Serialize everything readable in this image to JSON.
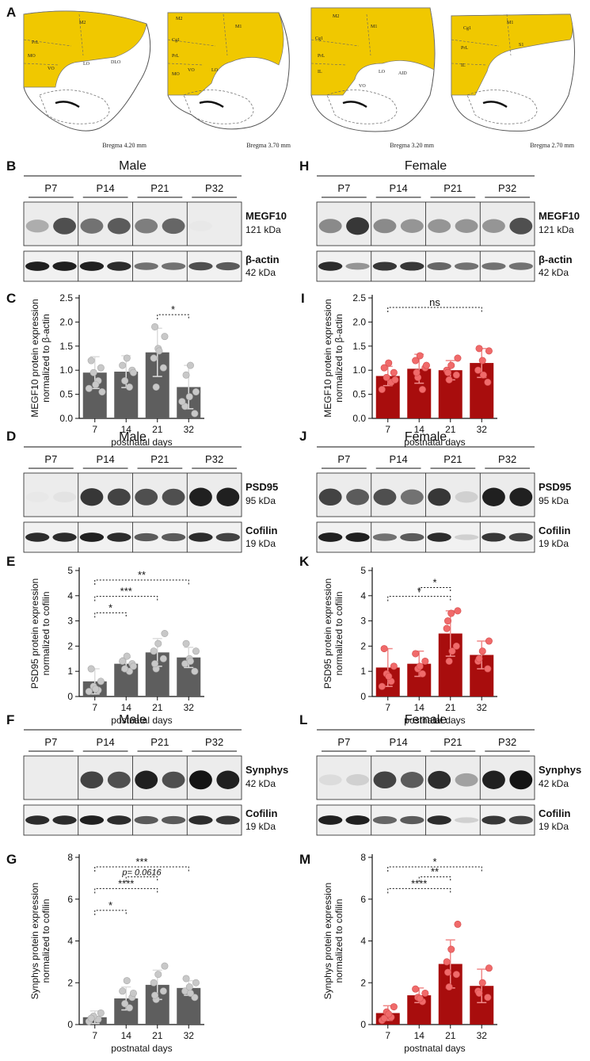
{
  "panel_letters": {
    "A": "A",
    "B": "B",
    "C": "C",
    "D": "D",
    "E": "E",
    "F": "F",
    "G": "G",
    "H": "H",
    "I": "I",
    "J": "J",
    "K": "K",
    "L": "L",
    "M": "M"
  },
  "atlas": {
    "bregma": [
      "Bregma 4.20 mm",
      "Bregma 3.70 mm",
      "Bregma 3.20 mm",
      "Bregma 2.70 mm"
    ],
    "regions": [
      [
        "M2",
        "PrL",
        "MO",
        "VO",
        "LO",
        "DLO"
      ],
      [
        "M2",
        "M1",
        "Cg1",
        "PrL",
        "MO",
        "VO",
        "LO"
      ],
      [
        "M2",
        "M1",
        "Cg1",
        "PrL",
        "IL",
        "VO",
        "LO",
        "AID"
      ],
      [
        "M1",
        "Cg1",
        "PrL",
        "IL",
        "S1"
      ]
    ]
  },
  "blots": {
    "lane_labels": [
      "P7",
      "P14",
      "P21",
      "P32"
    ],
    "B": {
      "sex": "Male",
      "target": "MEGF10",
      "target_kda": "121 kDa",
      "control": "β-actin",
      "control_kda": "42 kDa"
    },
    "H": {
      "sex": "Female",
      "target": "MEGF10",
      "target_kda": "121 kDa",
      "control": "β-actin",
      "control_kda": "42 kDa"
    },
    "D": {
      "sex": "Male",
      "target": "PSD95",
      "target_kda": "95 kDa",
      "control": "Cofilin",
      "control_kda": "19 kDa"
    },
    "J": {
      "sex": "Female",
      "target": "PSD95",
      "target_kda": "95 kDa",
      "control": "Cofilin",
      "control_kda": "19 kDa"
    },
    "F": {
      "sex": "Male",
      "target": "Synphys",
      "target_kda": "42 kDa",
      "control": "Cofilin",
      "control_kda": "19 kDa"
    },
    "L": {
      "sex": "Female",
      "target": "Synphys",
      "target_kda": "42 kDa",
      "control": "Cofilin",
      "control_kda": "19 kDa"
    }
  },
  "colors": {
    "male_bar": "#5e5e5e",
    "male_point": "#c8c8c8",
    "female_bar": "#a80d0d",
    "female_point": "#f06a6a",
    "atlas_fill": "#f0c800"
  },
  "chart_data": [
    {
      "panel": "C",
      "type": "bar",
      "xlabel": "postnatal days",
      "ylabel": "MEGF10 protein expression normalized to β-actin",
      "categories": [
        "7",
        "14",
        "21",
        "32"
      ],
      "values": [
        0.95,
        0.97,
        1.37,
        0.65
      ],
      "errors": [
        0.33,
        0.33,
        0.5,
        0.45
      ],
      "ylim": [
        0,
        2.5
      ],
      "yticks": [
        "0.0",
        "0.5",
        "1.0",
        "1.5",
        "2.0",
        "2.5"
      ],
      "points": [
        [
          0.62,
          0.78,
          0.95,
          1.05,
          1.2,
          0.7,
          0.55
        ],
        [
          0.65,
          0.78,
          1.0,
          1.1,
          1.25,
          0.95
        ],
        [
          0.65,
          1.05,
          1.25,
          1.45,
          1.7,
          1.9,
          1.4
        ],
        [
          0.1,
          0.25,
          0.45,
          0.55,
          0.9,
          1.1,
          0.35
        ]
      ],
      "significance": [
        {
          "from": "21",
          "to": "32",
          "label": "*"
        }
      ]
    },
    {
      "panel": "I",
      "type": "bar",
      "xlabel": "postnatal days",
      "ylabel": "MEGF10 protein expression normalized to β-actin",
      "categories": [
        "7",
        "14",
        "21",
        "32"
      ],
      "values": [
        0.88,
        1.03,
        1.0,
        1.15
      ],
      "errors": [
        0.2,
        0.3,
        0.2,
        0.3
      ],
      "ylim": [
        0,
        2.5
      ],
      "yticks": [
        "0.0",
        "0.5",
        "1.0",
        "1.5",
        "2.0",
        "2.5"
      ],
      "points": [
        [
          0.6,
          0.75,
          0.85,
          0.95,
          1.05,
          1.15,
          0.8
        ],
        [
          0.6,
          0.85,
          1.05,
          1.2,
          1.3,
          1.1,
          0.95
        ],
        [
          0.8,
          0.9,
          1.0,
          1.1,
          1.25,
          0.95
        ],
        [
          0.75,
          1.0,
          1.2,
          1.4,
          1.45,
          0.9
        ]
      ],
      "significance": [
        {
          "from": "7",
          "to": "32",
          "label": "ns"
        }
      ]
    },
    {
      "panel": "E",
      "type": "bar",
      "xlabel": "postnatal days",
      "ylabel": "PSD95 protein expression normalized to cofilin",
      "categories": [
        "7",
        "14",
        "21",
        "32"
      ],
      "values": [
        0.6,
        1.3,
        1.75,
        1.55
      ],
      "errors": [
        0.5,
        0.25,
        0.55,
        0.4
      ],
      "ylim": [
        0,
        5
      ],
      "yticks": [
        "0",
        "1",
        "2",
        "3",
        "4",
        "5"
      ],
      "points": [
        [
          0.2,
          0.25,
          0.4,
          0.6,
          1.1,
          0.3
        ],
        [
          1.0,
          1.1,
          1.3,
          1.4,
          1.6,
          1.2
        ],
        [
          1.1,
          1.5,
          1.8,
          2.1,
          2.5,
          1.3
        ],
        [
          1.0,
          1.3,
          1.5,
          1.8,
          2.1,
          1.4
        ]
      ],
      "significance": [
        {
          "from": "7",
          "to": "14",
          "label": "*"
        },
        {
          "from": "7",
          "to": "21",
          "label": "***"
        },
        {
          "from": "7",
          "to": "32",
          "label": "**"
        }
      ]
    },
    {
      "panel": "K",
      "type": "bar",
      "xlabel": "postnatal days",
      "ylabel": "PSD95 protein expression normalized to cofilin",
      "categories": [
        "7",
        "14",
        "21",
        "32"
      ],
      "values": [
        1.15,
        1.3,
        2.5,
        1.65
      ],
      "errors": [
        0.75,
        0.5,
        0.9,
        0.55
      ],
      "ylim": [
        0,
        5
      ],
      "yticks": [
        "0",
        "1",
        "2",
        "3",
        "4",
        "5"
      ],
      "points": [
        [
          0.4,
          0.6,
          0.9,
          1.2,
          1.9,
          0.8
        ],
        [
          0.9,
          1.1,
          1.4,
          1.7,
          1.2
        ],
        [
          1.4,
          2.0,
          2.7,
          3.3,
          3.4,
          3.0,
          1.8
        ],
        [
          1.1,
          1.4,
          1.8,
          2.2,
          1.5
        ]
      ],
      "significance": [
        {
          "from": "14",
          "to": "21",
          "label": "*"
        },
        {
          "from": "7",
          "to": "21",
          "label": "*"
        }
      ]
    },
    {
      "panel": "G",
      "type": "bar",
      "xlabel": "postnatal days",
      "ylabel": "Synphys protein expression normalized to cofilin",
      "categories": [
        "7",
        "14",
        "21",
        "32"
      ],
      "values": [
        0.35,
        1.25,
        1.9,
        1.75
      ],
      "errors": [
        0.3,
        0.55,
        0.7,
        0.35
      ],
      "ylim": [
        0,
        8
      ],
      "yticks": [
        "0",
        "2",
        "4",
        "6",
        "8"
      ],
      "points": [
        [
          0.15,
          0.25,
          0.4,
          0.55,
          0.3
        ],
        [
          0.8,
          1.0,
          1.3,
          1.6,
          2.1,
          1.5
        ],
        [
          1.2,
          1.6,
          2.0,
          2.4,
          2.8,
          1.4
        ],
        [
          1.3,
          1.6,
          1.8,
          2.0,
          2.2,
          1.5
        ]
      ],
      "significance": [
        {
          "from": "7",
          "to": "14",
          "label": "*"
        },
        {
          "from": "14",
          "to": "21",
          "label": "p= 0.0616"
        },
        {
          "from": "7",
          "to": "21",
          "label": "****"
        },
        {
          "from": "7",
          "to": "32",
          "label": "***"
        }
      ]
    },
    {
      "panel": "M",
      "type": "bar",
      "xlabel": "postnatal days",
      "ylabel": "Synphys protein expression normalized to cofilin",
      "categories": [
        "7",
        "14",
        "21",
        "32"
      ],
      "values": [
        0.55,
        1.4,
        2.9,
        1.85
      ],
      "errors": [
        0.35,
        0.35,
        1.15,
        0.8
      ],
      "ylim": [
        0,
        8
      ],
      "yticks": [
        "0",
        "2",
        "4",
        "6",
        "8"
      ],
      "points": [
        [
          0.2,
          0.35,
          0.6,
          0.85,
          0.3,
          0.5
        ],
        [
          1.1,
          1.3,
          1.5,
          1.7,
          1.25
        ],
        [
          1.8,
          2.4,
          3.0,
          3.6,
          4.8,
          2.5
        ],
        [
          1.3,
          1.6,
          2.0,
          2.7,
          1.5
        ]
      ],
      "significance": [
        {
          "from": "7",
          "to": "21",
          "label": "****"
        },
        {
          "from": "7",
          "to": "32",
          "label": "*"
        },
        {
          "from": "14",
          "to": "21",
          "label": "**"
        }
      ]
    }
  ]
}
